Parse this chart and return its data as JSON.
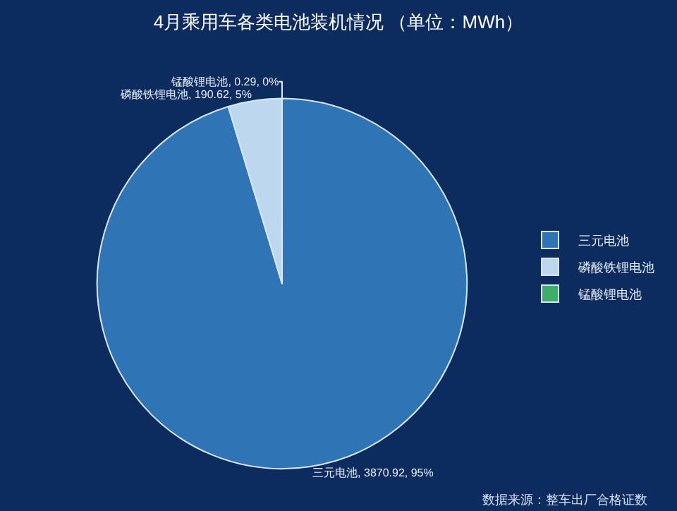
{
  "chart_data": {
    "type": "pie",
    "title": "4月乘用车各类电池装机情况 （单位：MWh）",
    "categories": [
      "三元电池",
      "磷酸铁锂电池",
      "锰酸锂电池"
    ],
    "values": [
      3870.92,
      190.62,
      0.29
    ],
    "value_labels": [
      "三元电池, 3870.92, 95%",
      "磷酸铁锂电池, 190.62, 5%",
      "锰酸锂电池, 0.29, 0%"
    ],
    "colors": [
      "#2f74b5",
      "#bdd7ee",
      "#3fae6a"
    ],
    "legend": "right",
    "annotations": [
      "数据来源：整车出厂合格证数"
    ]
  }
}
